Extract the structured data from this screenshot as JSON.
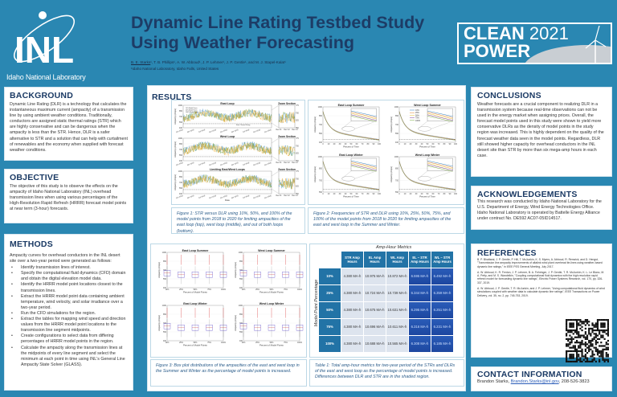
{
  "header": {
    "logo_letters": "INL",
    "logo_caption": "Idaho National Laboratory",
    "title_line1": "Dynamic Line Rating Testbed Study",
    "title_line2": "Using Weather Forecasting",
    "lead_author": "B. E. Starks",
    "other_authors": "¹, T. B. Phillips¹, A. W. Abboud¹, J. P. Lehmer¹, J. P. Gentle¹, and M. J. Stapel-Kalat¹",
    "affiliation": "¹Idaho National Laboratory, Idaho Falls, United States",
    "event_logo": {
      "clean": "CLEAN",
      "year": "2021",
      "power": "POWER"
    }
  },
  "background": {
    "heading": "BACKGROUND",
    "text": "Dynamic Line Rating (DLR) is a technology that calculates the instantaneous maximum current (ampacity) of a transmission line by using ambient weather conditions. Traditionally, conductors are assigned static thermal ratings (STR) which are highly conservative and can be dangerous when the ampacity is less than the STR. Hence, DLR is a safer alternative to STR and a solution that can help with curtailment of renewables and the economy when supplied with forecast weather conditions."
  },
  "objective": {
    "heading": "OBJECTIVE",
    "text": "The objective of this study is to observe the effects on the ampacity of Idaho National Laboratory (INL) overhead transmission lines when using various percentages of the High-Resolution Rapid Refresh (HRRR) forecast model points at near term (3-hour) forecasts."
  },
  "methods": {
    "heading": "METHODS",
    "intro": "Ampacity curves for overhead conductors in the INL desert site over a two-year period were generated as follows:",
    "steps": [
      "Identify transmission lines of interest.",
      "Specify the computational fluid dynamics (CFD) domain and obtain the digital elevation model data.",
      "Identify the HRRR model point locations closest to the transmission lines.",
      "Extract the HRRR model point data containing ambient temperature, wind velocity, and solar irradiance over a two-year period.",
      "Run the CFD simulations for the region.",
      "Extract the tables for mapping wind speed and direction values from the HRRR model point locations to the transmission line segment midpoints.",
      "Create configurations to select data from differing percentages of HRRR model points in the region.",
      "Calculate the ampacity along the transmission lines at the midpoints of every line segment and select the minimum at each point in time using INL's General Line Ampacity State Solver (GLASS)."
    ]
  },
  "results": {
    "heading": "RESULTS",
    "fig1": {
      "caption": "Figure 1: STR versus DLR using 10%, 50%, and 100% of the model points from 2018 to 2020 for limiting ampacities of the east loop (top), west loop (middle), and out of both loops (bottom).",
      "panels": [
        "East Loop",
        "West Loop",
        "Limiting East/West Loops"
      ],
      "zoom_title": "Zoom Section",
      "yticks": [
        "1000",
        "850",
        "700",
        "550",
        "400"
      ],
      "zoom_yticks": [
        "775",
        "700",
        "625",
        "550"
      ],
      "xticks": [
        "Jan 2018",
        "Apr 2018",
        "Jul 2018",
        "Oct 2018",
        "Jan 2019",
        "Apr 2019",
        "Jul 2019",
        "Oct 2019",
        "Jan 2020"
      ],
      "zoom_xticks": [
        "Dec 11",
        "Dec 12",
        "Dec 13"
      ],
      "xlabel": "Date",
      "ylabel": "Ampacity (Amps)",
      "legend": [
        "10% Model Points",
        "50% Model Points",
        "100% Model Points"
      ],
      "annotations": [
        "Static Thermal Rating"
      ],
      "colors": [
        "#4a90c8",
        "#6a9a3a",
        "#f0a81c"
      ]
    },
    "fig2": {
      "caption": "Figure 2: Frequencies of STR and DLR using 10%, 25%, 50%, 75%, and 100% of the model points from 2018 to 2020 for limiting ampacities of the east and west loop in the Summer and Winter.",
      "panels": [
        "East Loop Summer",
        "West Loop Summer",
        "East Loop Winter",
        "West Loop Winter"
      ],
      "yticks_summer": [
        "1000",
        "850",
        "700",
        "550",
        "400"
      ],
      "yticks_winter": [
        "1000",
        "850",
        "700",
        "550"
      ],
      "xticks": [
        "0",
        "10",
        "20",
        "30",
        "40",
        "50",
        "60",
        "70",
        "80",
        "90",
        "100"
      ],
      "xlabel": "Percent of Time",
      "ylabel": "Ampacity (Amps)",
      "legend": [
        "10%",
        "25%",
        "50%",
        "75%",
        "100%"
      ],
      "colors": [
        "#2f7fc1",
        "#e0802a",
        "#e8c43a",
        "#7a3f9a",
        "#76a83c"
      ]
    },
    "fig3": {
      "caption": "Figure 3: Box plot distributions of the ampacities of the east and west loop in the Summer and Winter as the percentage of model points is increased.",
      "panels": [
        "East Loop Summer",
        "West Loop Summer",
        "East Loop Winter",
        "West Loop Winter"
      ],
      "yticks": [
        "1000",
        "850",
        "700",
        "550",
        "400"
      ],
      "xticks": [
        "10%",
        "25%",
        "50%",
        "75%",
        "100%"
      ],
      "xlabel": "Percent of Model Points",
      "ylabel": "Ampacity (Amps)"
    },
    "table": {
      "title": "Amp-Hour Metrics",
      "row_axis": "Model Point Percentage",
      "columns": [
        "STR Amp Hours",
        "EL Amp Hours",
        "WL Amp Hours",
        "EL – STR Amp Hours",
        "WL – STR Amp Hours"
      ],
      "rows": [
        {
          "label": "10%",
          "values": [
            "4.380 MA-h",
            "10.975 MA-h",
            "10.872 MA-h",
            "6.595 MA-h",
            "6.492 MA-h"
          ]
        },
        {
          "label": "25%",
          "values": [
            "4.380 MA-h",
            "10.724 MA-h",
            "10.739 MA-h",
            "6.344 MA-h",
            "6.359 MA-h"
          ]
        },
        {
          "label": "50%",
          "values": [
            "4.380 MA-h",
            "10.675 MA-h",
            "10.631 MA-h",
            "6.295 MA-h",
            "6.251 MA-h"
          ]
        },
        {
          "label": "75%",
          "values": [
            "4.380 MA-h",
            "10.696 MA-h",
            "10.611 MA-h",
            "6.316 MA-h",
            "6.231 MA-h"
          ]
        },
        {
          "label": "100%",
          "values": [
            "4.380 MA-h",
            "10.688 MA-h",
            "10.565 MA-h",
            "6.308 MA-h",
            "6.185 MA-h"
          ]
        }
      ],
      "caption": "Table 1: Total amp-hour metrics for two-year period of the STRs and DLRs of the east and west loop as the percentage of model points is increased. Differences between DLR and STR are in the shaded region."
    }
  },
  "conclusions": {
    "heading": "CONCLUSIONS",
    "text": "Weather forecasts are a crucial component to realizing DLR in a transmission system because real-time observations can not be used in the energy market when assigning prices. Overall, the forecast model points used in this study were shown to yield more conservative DLRs as the density of model points in the study region was increased. This is highly dependent on the quality of the forecast weather data seen in the model points. Regardless, DLR still showed higher capacity for overhead conductors in the INL desert site than STR by more than six mega-amp hours in each case."
  },
  "acknowledgements": {
    "heading": "ACKNOWLEDGEMENTS",
    "text": "This research was conducted by Idaho National Laboratory for the U.S. Department of Energy, Wind Energy Technologies Office. Idaho National Laboratory is operated by Battelle Energy Alliance under contract No. DE592 AC07-05ID14517."
  },
  "references": {
    "heading": "REFERENCES",
    "items": [
      "B. P. Bhattarai, J. P. Gentle, P. Hill, T. McJunkin, K. S. Myers, A. Abboud, R. Renwick, and D. Hengst, \"Transmission line ampacity improvements of altalink wind plant overhead tie-lines using weather-based dynamic line ratings,\" in IEEE PES General Meeting, July 2017.",
      "A. W. Abboud, K. R. Fenton, J. P. Lehmer, B. A. Fehringer, J. P. Gentle, T. R. McJunkin, K. L. Le Blanc, M. A. Petty, and M. S. Wandelkin, \"Coupling computational fluid dynamics with the high resolution rapid refresh model for forecasting dynamic line ratings\", Electric Power Systems Research, vol. 170, pp. 326-337, 2019.",
      "A. W. Abboud, J. P. Gentle, T. R. McJunkin, and J. P. Lehmer, \"Using computational fluid dynamics of wind simulations coupled with weather data to calculate dynamic line ratings\", IEEE Transactions on Power Delivery, vol. 35, no. 2, pp. 745-753, 2019."
    ]
  },
  "contact": {
    "heading": "CONTACT INFORMATION",
    "name": "Brandon Starks, ",
    "email": "Brandon.Starks@inl.gov",
    "phone": ", 208-526-3823"
  }
}
